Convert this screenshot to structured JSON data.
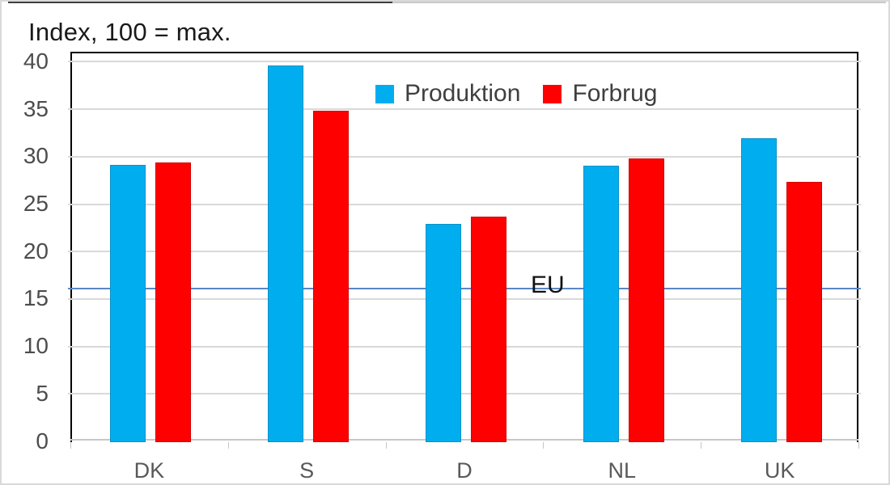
{
  "title": "Index, 100 = max.",
  "legend": {
    "items": [
      {
        "label": "Produktion",
        "color": "#00AEEF"
      },
      {
        "label": "Forbrug",
        "color": "#FF0000"
      }
    ]
  },
  "colors": {
    "produktion": "#00AEEF",
    "forbrug": "#FF0000",
    "reference_line": "#5b87c5",
    "gridline": "#d9d9d9",
    "plot_border": "#000000",
    "axis_text": "#595959"
  },
  "chart_data": {
    "type": "bar",
    "title": "Index, 100 = max.",
    "categories": [
      "DK",
      "S",
      "D",
      "NL",
      "UK"
    ],
    "series": [
      {
        "name": "Produktion",
        "color": "#00AEEF",
        "values": [
          29.2,
          39.7,
          23.0,
          29.1,
          32.0
        ]
      },
      {
        "name": "Forbrug",
        "color": "#FF0000",
        "values": [
          29.5,
          34.9,
          23.8,
          29.9,
          27.4
        ]
      }
    ],
    "reference_line": {
      "label": "EU",
      "value": 16.1,
      "color": "#5b87c5"
    },
    "xlabel": "",
    "ylabel": "",
    "ylim": [
      0,
      40
    ],
    "yticks": [
      0,
      5,
      10,
      15,
      20,
      25,
      30,
      35,
      40
    ],
    "grid": true,
    "legend_position": "top-center-inside"
  }
}
